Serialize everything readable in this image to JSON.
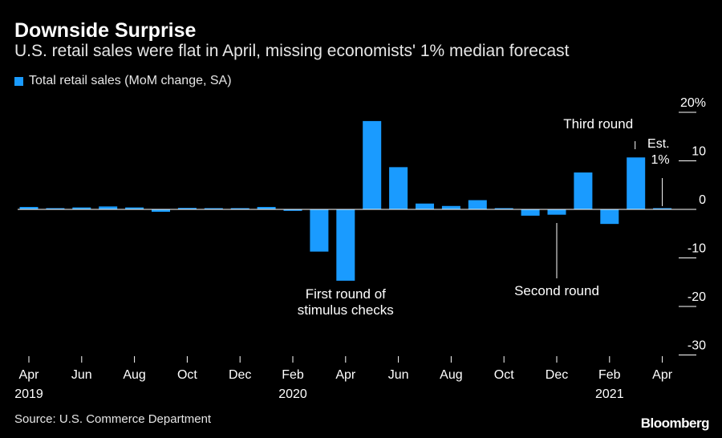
{
  "header": {
    "title": "Downside Surprise",
    "subtitle": "U.S. retail sales were flat in April, missing economists' 1% median forecast"
  },
  "legend": {
    "label": "Total retail sales (MoM change, SA)"
  },
  "footer": {
    "source": "Source: U.S. Commerce Department",
    "brand": "Bloomberg"
  },
  "colors": {
    "bar": "#1a9bff",
    "background": "#000000",
    "axis": "#ffffff"
  },
  "chart_data": {
    "type": "bar",
    "categories": [
      "Apr 2019",
      "May 2019",
      "Jun 2019",
      "Jul 2019",
      "Aug 2019",
      "Sep 2019",
      "Oct 2019",
      "Nov 2019",
      "Dec 2019",
      "Jan 2020",
      "Feb 2020",
      "Mar 2020",
      "Apr 2020",
      "May 2020",
      "Jun 2020",
      "Jul 2020",
      "Aug 2020",
      "Sep 2020",
      "Oct 2020",
      "Nov 2020",
      "Dec 2020",
      "Jan 2021",
      "Feb 2021",
      "Mar 2021",
      "Apr 2021"
    ],
    "values": [
      0.5,
      0.2,
      0.4,
      0.6,
      0.4,
      -0.5,
      0.3,
      0.2,
      0.1,
      0.5,
      -0.3,
      -8.7,
      -14.7,
      18.2,
      8.7,
      1.2,
      0.7,
      1.9,
      -0.1,
      -1.3,
      -1.1,
      7.6,
      -3.0,
      10.7,
      0.0
    ],
    "ylim": [
      -30,
      20
    ],
    "yticks": [
      {
        "value": 20,
        "label": "20%"
      },
      {
        "value": 10,
        "label": "10"
      },
      {
        "value": 0,
        "label": "0"
      },
      {
        "value": -10,
        "label": "-10"
      },
      {
        "value": -20,
        "label": "-20"
      },
      {
        "value": -30,
        "label": "-30"
      }
    ],
    "xticks": [
      {
        "index": 0,
        "month": "Apr",
        "year": "2019"
      },
      {
        "index": 2,
        "month": "Jun",
        "year": ""
      },
      {
        "index": 4,
        "month": "Aug",
        "year": ""
      },
      {
        "index": 6,
        "month": "Oct",
        "year": ""
      },
      {
        "index": 8,
        "month": "Dec",
        "year": ""
      },
      {
        "index": 10,
        "month": "Feb",
        "year": "2020"
      },
      {
        "index": 12,
        "month": "Apr",
        "year": ""
      },
      {
        "index": 14,
        "month": "Jun",
        "year": ""
      },
      {
        "index": 16,
        "month": "Aug",
        "year": ""
      },
      {
        "index": 18,
        "month": "Oct",
        "year": ""
      },
      {
        "index": 20,
        "month": "Dec",
        "year": ""
      },
      {
        "index": 22,
        "month": "Feb",
        "year": "2021"
      },
      {
        "index": 24,
        "month": "Apr",
        "year": ""
      }
    ],
    "forecast": {
      "index": 24,
      "value": 1.0
    },
    "annotations": [
      {
        "index": 12,
        "lines": [
          "First round of",
          "stimulus checks"
        ]
      },
      {
        "index": 20,
        "lines": [
          "Second round"
        ]
      },
      {
        "index": 23,
        "lines": [
          "Third round"
        ]
      },
      {
        "index": 24,
        "lines": [
          "Est.",
          "1%"
        ]
      }
    ]
  }
}
